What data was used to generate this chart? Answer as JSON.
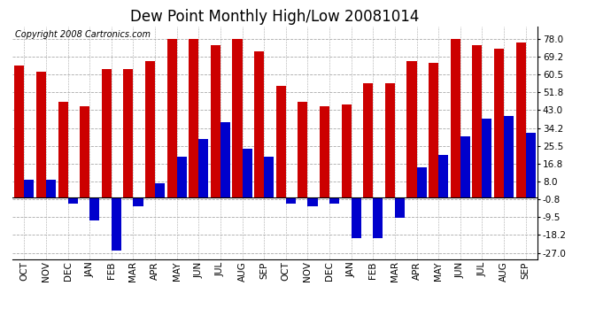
{
  "title": "Dew Point Monthly High/Low 20081014",
  "copyright": "Copyright 2008 Cartronics.com",
  "categories": [
    "OCT",
    "NOV",
    "DEC",
    "JAN",
    "FEB",
    "MAR",
    "APR",
    "MAY",
    "JUN",
    "JUL",
    "AUG",
    "SEP",
    "OCT",
    "NOV",
    "DEC",
    "JAN",
    "FEB",
    "MAR",
    "APR",
    "MAY",
    "JUN",
    "JUL",
    "AUG",
    "SEP"
  ],
  "high_values": [
    65,
    62,
    47,
    45,
    63,
    63,
    67,
    78,
    78,
    75,
    78,
    72,
    55,
    47,
    45,
    46,
    56,
    56,
    67,
    66,
    78,
    75,
    73,
    76
  ],
  "low_values": [
    9,
    9,
    -3,
    -11,
    -26,
    -4,
    7,
    20,
    29,
    37,
    24,
    20,
    -3,
    -4,
    -3,
    -20,
    -20,
    -10,
    15,
    21,
    30,
    39,
    40,
    32
  ],
  "bar_color_high": "#cc0000",
  "bar_color_low": "#0000cc",
  "background_color": "#ffffff",
  "plot_bg_color": "#ffffff",
  "grid_color": "#aaaaaa",
  "yticks": [
    78.0,
    69.2,
    60.5,
    51.8,
    43.0,
    34.2,
    25.5,
    16.8,
    8.0,
    -0.8,
    -9.5,
    -18.2,
    -27.0
  ],
  "ylim": [
    -30.0,
    84.0
  ],
  "title_fontsize": 12,
  "copyright_fontsize": 7,
  "tick_fontsize": 7.5
}
